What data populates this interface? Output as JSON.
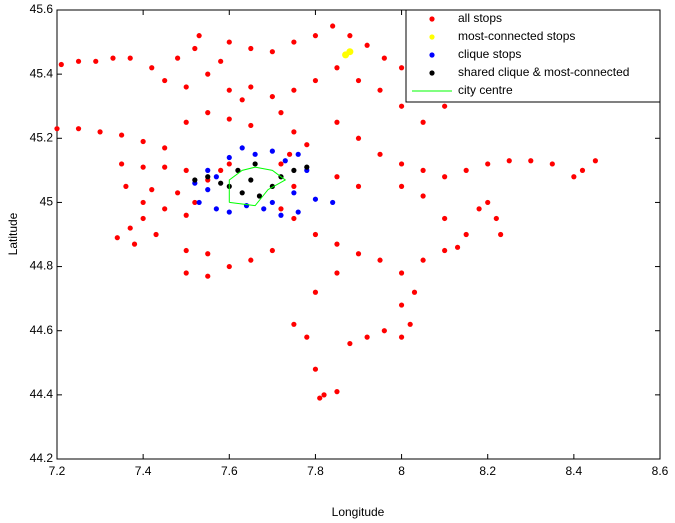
{
  "chart_data": {
    "type": "scatter",
    "x_label": "Longitude",
    "y_label": "Latitude",
    "xlim": [
      7.2,
      8.6
    ],
    "ylim": [
      44.2,
      45.6
    ],
    "xticks": [
      7.2,
      7.4,
      7.6,
      7.8,
      8,
      8.2,
      8.4,
      8.6
    ],
    "yticks": [
      44.2,
      44.4,
      44.6,
      44.8,
      45,
      45.2,
      45.4,
      45.6
    ],
    "legend_position": "upper right",
    "series": [
      {
        "name": "all stops",
        "color": "#ff0000",
        "kind": "points",
        "x": [
          7.21,
          7.25,
          7.29,
          7.33,
          7.37,
          7.42,
          7.45,
          7.48,
          7.5,
          7.52,
          7.53,
          7.55,
          7.58,
          7.6,
          7.63,
          7.6,
          7.65,
          7.7,
          7.75,
          7.8,
          7.84,
          7.88,
          7.92,
          7.96,
          8.0,
          8.05,
          8.08,
          8.12,
          8.15,
          8.18,
          8.1,
          8.05,
          8.0,
          7.95,
          7.9,
          7.85,
          7.8,
          7.75,
          7.7,
          7.65,
          7.72,
          7.75,
          7.78,
          7.74,
          7.5,
          7.55,
          7.6,
          7.65,
          7.85,
          7.9,
          7.95,
          7.2,
          7.25,
          7.3,
          7.35,
          7.4,
          7.45,
          7.35,
          7.4,
          7.45,
          7.5,
          7.36,
          7.42,
          7.48,
          7.52,
          7.4,
          7.45,
          7.5,
          7.34,
          7.37,
          7.4,
          7.38,
          7.43,
          8.0,
          8.05,
          8.1,
          8.15,
          8.2,
          8.25,
          8.3,
          8.35,
          8.4,
          8.45,
          8.42,
          8.2,
          8.22,
          8.23,
          8.18,
          8.1,
          8.05,
          8.0,
          7.9,
          7.85,
          7.75,
          7.8,
          7.85,
          7.9,
          7.95,
          8.0,
          8.03,
          8.0,
          8.02,
          8.0,
          7.96,
          7.92,
          7.88,
          8.05,
          8.1,
          8.13,
          8.15,
          7.85,
          7.8,
          7.75,
          7.78,
          7.8,
          7.82,
          7.81,
          7.85,
          7.5,
          7.55,
          7.6,
          7.65,
          7.7,
          7.5,
          7.55,
          7.55,
          7.58,
          7.6,
          7.72,
          7.75,
          7.72
        ],
        "values": [
          45.43,
          45.44,
          45.44,
          45.45,
          45.45,
          45.42,
          45.38,
          45.45,
          45.36,
          45.48,
          45.52,
          45.4,
          45.44,
          45.35,
          45.32,
          45.5,
          45.48,
          45.47,
          45.5,
          45.52,
          45.55,
          45.52,
          45.49,
          45.45,
          45.42,
          45.4,
          45.36,
          45.4,
          45.46,
          45.43,
          45.3,
          45.25,
          45.3,
          45.35,
          45.38,
          45.42,
          45.38,
          45.35,
          45.33,
          45.36,
          45.28,
          45.22,
          45.18,
          45.15,
          45.25,
          45.28,
          45.26,
          45.24,
          45.25,
          45.2,
          45.15,
          45.23,
          45.23,
          45.22,
          45.21,
          45.19,
          45.17,
          45.12,
          45.11,
          45.11,
          45.1,
          45.05,
          45.04,
          45.03,
          45.0,
          45.0,
          44.98,
          44.96,
          44.89,
          44.92,
          44.95,
          44.87,
          44.9,
          45.12,
          45.1,
          45.08,
          45.1,
          45.12,
          45.13,
          45.13,
          45.12,
          45.08,
          45.13,
          45.1,
          45.0,
          44.95,
          44.9,
          44.98,
          44.95,
          45.02,
          45.05,
          45.05,
          45.08,
          44.95,
          44.9,
          44.87,
          44.84,
          44.82,
          44.78,
          44.72,
          44.68,
          44.62,
          44.58,
          44.6,
          44.58,
          44.56,
          44.82,
          44.85,
          44.86,
          44.9,
          44.78,
          44.72,
          44.62,
          44.58,
          44.48,
          44.4,
          44.39,
          44.41,
          44.85,
          44.84,
          44.8,
          44.82,
          44.85,
          44.78,
          44.77,
          45.07,
          45.1,
          45.12,
          45.12,
          45.05,
          44.98
        ]
      },
      {
        "name": "most-connected stops",
        "color": "#ffff00",
        "kind": "points",
        "x": [
          7.88,
          7.87
        ],
        "values": [
          45.47,
          45.46
        ]
      },
      {
        "name": "clique stops",
        "color": "#0000ff",
        "kind": "points",
        "x": [
          7.53,
          7.55,
          7.57,
          7.6,
          7.63,
          7.66,
          7.7,
          7.73,
          7.76,
          7.78,
          7.75,
          7.8,
          7.84,
          7.76,
          7.72,
          7.68,
          7.64,
          7.6,
          7.57,
          7.52,
          7.55,
          7.7
        ],
        "values": [
          45.0,
          45.04,
          45.08,
          45.14,
          45.17,
          45.15,
          45.16,
          45.13,
          45.15,
          45.1,
          45.03,
          45.01,
          45.0,
          44.97,
          44.96,
          44.98,
          44.99,
          44.97,
          44.98,
          45.06,
          45.1,
          45.0
        ]
      },
      {
        "name": "shared clique & most-connected",
        "color": "#000000",
        "kind": "points",
        "x": [
          7.52,
          7.55,
          7.58,
          7.6,
          7.63,
          7.65,
          7.67,
          7.7,
          7.72,
          7.75,
          7.78,
          7.62,
          7.66
        ],
        "values": [
          45.07,
          45.08,
          45.06,
          45.05,
          45.03,
          45.07,
          45.02,
          45.05,
          45.08,
          45.1,
          45.11,
          45.1,
          45.12
        ]
      },
      {
        "name": "city centre",
        "color": "#00ff00",
        "kind": "line",
        "x": [
          7.6,
          7.6,
          7.63,
          7.66,
          7.7,
          7.73,
          7.69,
          7.66,
          7.6
        ],
        "values": [
          45.0,
          45.07,
          45.1,
          45.11,
          45.1,
          45.07,
          45.04,
          44.99,
          45.0
        ]
      }
    ]
  }
}
